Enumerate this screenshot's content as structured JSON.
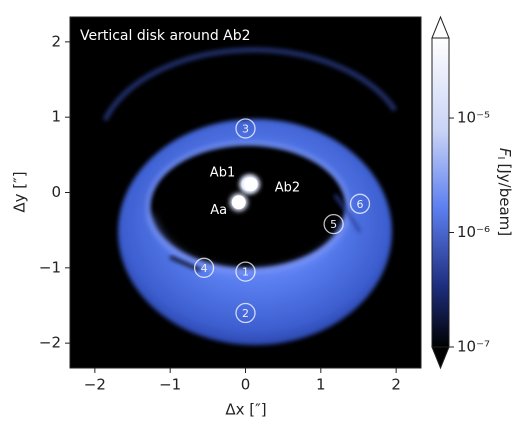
{
  "chart_data": {
    "type": "image",
    "title": "Vertical disk around Ab2",
    "xlabel": "Δx [″]",
    "ylabel": "Δy [″]",
    "xlim": [
      -2.33,
      2.33
    ],
    "ylim": [
      -2.33,
      2.33
    ],
    "xticks": [
      {
        "value": -2,
        "label": "−2"
      },
      {
        "value": -1,
        "label": "−1"
      },
      0,
      1,
      2
    ],
    "yticks": [
      {
        "value": -2,
        "label": "−2"
      },
      {
        "value": -1,
        "label": "−1"
      },
      0,
      1,
      2
    ],
    "stars": [
      {
        "label": "Ab1",
        "x": 0.04,
        "y": 0.11
      },
      {
        "label": "Ab2",
        "x": 0.07,
        "y": 0.11
      },
      {
        "label": "Aa",
        "x": -0.09,
        "y": -0.13
      }
    ],
    "markers": [
      {
        "label": "1",
        "x": 0.0,
        "y": -1.05
      },
      {
        "label": "2",
        "x": 0.0,
        "y": -1.6
      },
      {
        "label": "3",
        "x": 0.0,
        "y": 0.85
      },
      {
        "label": "4",
        "x": -0.55,
        "y": -1.0
      },
      {
        "label": "5",
        "x": 1.17,
        "y": -0.42
      },
      {
        "label": "6",
        "x": 1.52,
        "y": -0.15
      }
    ],
    "colorbar": {
      "label": "F",
      "label_sub": "I",
      "label_unit": "[Jy/beam]",
      "log_scale": true,
      "clim": [
        1e-07,
        5e-05
      ],
      "ticks": [
        {
          "value": 1e-05,
          "label": "10⁻⁵"
        },
        {
          "value": 1e-06,
          "label": "10⁻⁶"
        },
        {
          "value": 1e-07,
          "label": "10⁻⁷"
        }
      ]
    }
  }
}
